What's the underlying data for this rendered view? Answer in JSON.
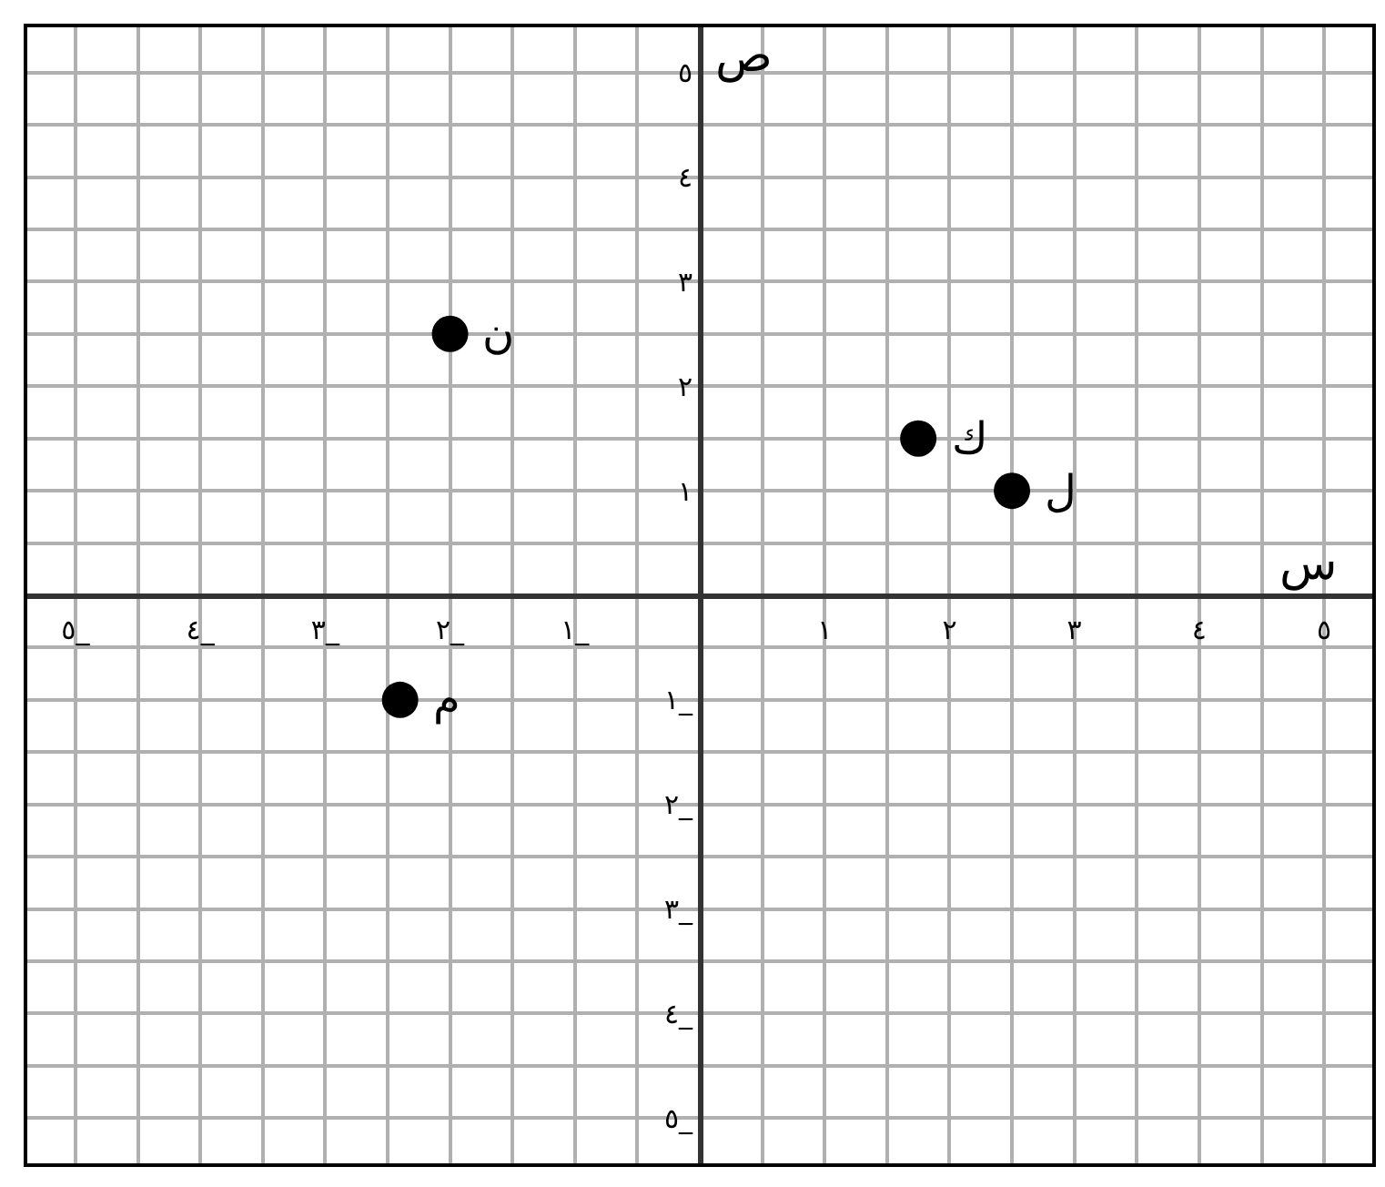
{
  "chart_data": {
    "type": "scatter",
    "xlabel": "س",
    "ylabel": "ص",
    "x": [
      -2,
      1.75,
      2.5,
      -2.4
    ],
    "values": [
      2.5,
      1.5,
      1,
      -1
    ],
    "color": "#000000",
    "marker": "circle",
    "annotations": [
      {
        "text": "ن",
        "x": -2,
        "y": 2.5
      },
      {
        "text": "ك",
        "x": 1.75,
        "y": 1.5
      },
      {
        "text": "ل",
        "x": 2.5,
        "y": 1
      },
      {
        "text": "م",
        "x": -2.4,
        "y": -1
      }
    ],
    "xlim": [
      -5.4,
      5.4
    ],
    "ylim": [
      -5.45,
      5.45
    ],
    "xticks": [
      {
        "value": -5,
        "label": "٥_"
      },
      {
        "value": -4,
        "label": "٤_"
      },
      {
        "value": -3,
        "label": "٣_"
      },
      {
        "value": -2,
        "label": "٢_"
      },
      {
        "value": -1,
        "label": "١_"
      },
      {
        "value": 1,
        "label": "١"
      },
      {
        "value": 2,
        "label": "٢"
      },
      {
        "value": 3,
        "label": "٣"
      },
      {
        "value": 4,
        "label": "٤"
      },
      {
        "value": 5,
        "label": "٥"
      }
    ],
    "yticks": [
      {
        "value": -5,
        "label": "٥_"
      },
      {
        "value": -4,
        "label": "٤_"
      },
      {
        "value": -3,
        "label": "٣_"
      },
      {
        "value": -2,
        "label": "٢_"
      },
      {
        "value": -1,
        "label": "١_"
      },
      {
        "value": 1,
        "label": "١"
      },
      {
        "value": 2,
        "label": "٢"
      },
      {
        "value": 3,
        "label": "٣"
      },
      {
        "value": 4,
        "label": "٤"
      },
      {
        "value": 5,
        "label": "٥"
      }
    ],
    "grid": true
  }
}
